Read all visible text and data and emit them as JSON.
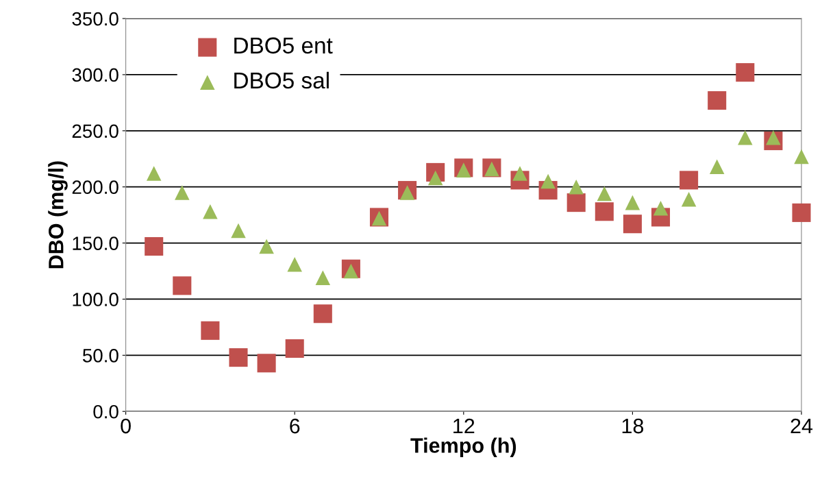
{
  "chart_data": {
    "type": "scatter",
    "xlabel": "Tiempo (h)",
    "ylabel": "DBO (mg/l)",
    "x": [
      1,
      2,
      3,
      4,
      5,
      6,
      7,
      8,
      9,
      10,
      11,
      12,
      13,
      14,
      15,
      16,
      17,
      18,
      19,
      20,
      21,
      22,
      23,
      24
    ],
    "series": [
      {
        "name": "DBO5 ent",
        "color": "#c0504d",
        "marker": "square",
        "values": [
          147,
          112,
          72,
          48,
          43,
          56,
          87,
          127,
          173,
          197,
          213,
          217,
          217,
          206,
          197,
          186,
          178,
          167,
          173,
          206,
          277,
          302,
          241,
          177
        ]
      },
      {
        "name": "DBO5 sal",
        "color": "#9bbb59",
        "marker": "triangle",
        "values": [
          212,
          195,
          178,
          161,
          147,
          131,
          119,
          125,
          172,
          195,
          208,
          215,
          216,
          212,
          205,
          200,
          194,
          186,
          181,
          189,
          218,
          244,
          244,
          227
        ]
      }
    ],
    "xlim": [
      0,
      24
    ],
    "xticks": [
      0,
      6,
      12,
      18,
      24
    ],
    "ylim": [
      0,
      350
    ],
    "yticks": [
      {
        "value": 0,
        "label": "0.0"
      },
      {
        "value": 50,
        "label": "50.0"
      },
      {
        "value": 100,
        "label": "100.0"
      },
      {
        "value": 150,
        "label": "150.0"
      },
      {
        "value": 200,
        "label": "200.0"
      },
      {
        "value": 250,
        "label": "250.0"
      },
      {
        "value": 300,
        "label": "300.0"
      },
      {
        "value": 350,
        "label": "350.0"
      }
    ],
    "grid": "y",
    "legend": "top left"
  }
}
